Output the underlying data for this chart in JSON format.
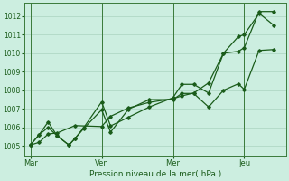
{
  "background_color": "#cceee0",
  "grid_color": "#aad4c0",
  "line_color": "#1a5c1a",
  "vline_color": "#3a7a3a",
  "xlabel": "Pression niveau de la mer( hPa )",
  "yticks": [
    1005,
    1006,
    1007,
    1008,
    1009,
    1010,
    1011,
    1012
  ],
  "ylim": [
    1004.5,
    1012.7
  ],
  "xtick_labels": [
    "Mar",
    "Ven",
    "Mer",
    "Jeu"
  ],
  "xtick_positions": [
    0,
    24,
    48,
    72
  ],
  "xlim": [
    -2,
    86
  ],
  "vlines": [
    0,
    24,
    48,
    72
  ],
  "base": 1005.0,
  "line1_x": [
    0,
    3,
    6,
    9,
    15,
    24,
    27,
    33,
    40,
    48,
    51,
    55,
    60,
    65,
    70,
    72,
    77,
    82
  ],
  "line1_y": [
    1005.05,
    1005.2,
    1005.65,
    1005.7,
    1006.1,
    1006.05,
    1006.6,
    1007.05,
    1007.35,
    1007.55,
    1007.7,
    1007.85,
    1008.4,
    1010.0,
    1010.9,
    1011.0,
    1012.15,
    1011.5
  ],
  "line2_x": [
    0,
    3,
    6,
    9,
    13,
    15,
    18,
    24,
    27,
    33,
    40,
    48,
    51,
    55,
    60,
    65,
    70,
    72,
    77,
    82
  ],
  "line2_y": [
    1005.05,
    1005.62,
    1006.0,
    1005.55,
    1005.05,
    1005.4,
    1006.0,
    1007.38,
    1006.08,
    1006.55,
    1007.1,
    1007.6,
    1008.32,
    1008.32,
    1007.85,
    1010.0,
    1010.1,
    1010.3,
    1012.25,
    1012.25
  ],
  "line3_x": [
    0,
    3,
    6,
    9,
    13,
    15,
    18,
    24,
    27,
    33,
    40,
    48,
    51,
    55,
    60,
    65,
    70,
    72,
    77,
    82
  ],
  "line3_y": [
    1005.05,
    1005.62,
    1006.3,
    1005.55,
    1005.05,
    1005.4,
    1005.95,
    1006.95,
    1005.75,
    1006.98,
    1007.5,
    1007.5,
    1007.83,
    1007.83,
    1007.1,
    1008.0,
    1008.35,
    1008.05,
    1010.15,
    1010.2
  ]
}
